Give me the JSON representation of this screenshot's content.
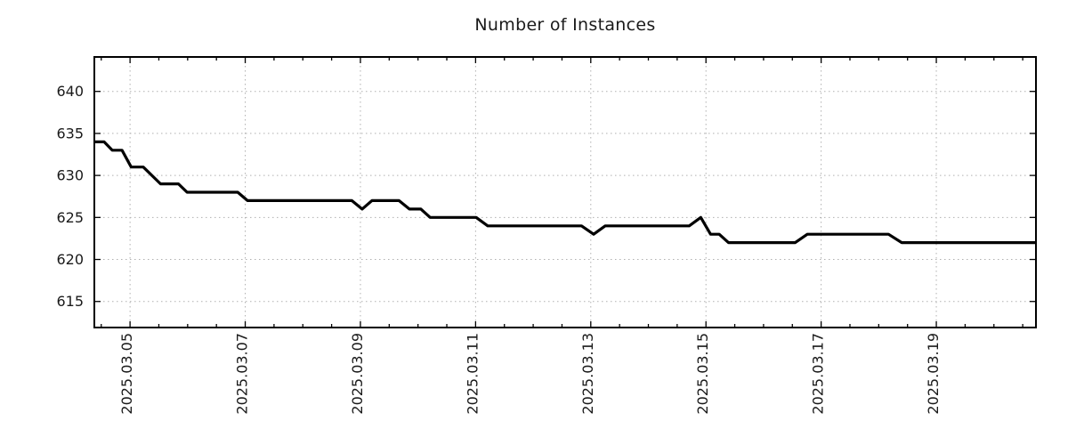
{
  "chart_data": {
    "type": "line",
    "title": "Number of Instances",
    "x_axis": {
      "kind": "date",
      "day_zero": "2025.03.05",
      "major_tick_labels": [
        "2025.03.05",
        "2025.03.07",
        "2025.03.09",
        "2025.03.11",
        "2025.03.13",
        "2025.03.15",
        "2025.03.17",
        "2025.03.19"
      ],
      "major_tick_days": [
        0,
        2,
        4,
        6,
        8,
        10,
        12,
        14
      ],
      "minor_tick_interval_days": 0.5,
      "range_days": [
        -0.62,
        15.73
      ]
    },
    "y_axis": {
      "ticks": [
        615,
        620,
        625,
        630,
        635,
        640
      ],
      "range": [
        611.9,
        644.1
      ]
    },
    "grid": {
      "show": true,
      "style": "dotted",
      "at": "major-ticks"
    },
    "legend": {
      "show": false
    },
    "series": [
      {
        "points_day_value": [
          [
            -0.62,
            634
          ],
          [
            -0.45,
            634
          ],
          [
            -0.31,
            633
          ],
          [
            -0.14,
            633
          ],
          [
            0.02,
            631
          ],
          [
            0.23,
            631
          ],
          [
            0.53,
            629
          ],
          [
            0.84,
            629
          ],
          [
            0.99,
            628
          ],
          [
            1.87,
            628
          ],
          [
            2.04,
            627
          ],
          [
            3.85,
            627
          ],
          [
            4.03,
            626
          ],
          [
            4.2,
            627
          ],
          [
            4.67,
            627
          ],
          [
            4.85,
            626
          ],
          [
            5.05,
            626
          ],
          [
            5.21,
            625
          ],
          [
            6.01,
            625
          ],
          [
            6.21,
            624
          ],
          [
            7.84,
            624
          ],
          [
            8.05,
            623
          ],
          [
            8.25,
            624
          ],
          [
            9.71,
            624
          ],
          [
            9.91,
            625
          ],
          [
            10.08,
            623
          ],
          [
            10.23,
            623
          ],
          [
            10.39,
            622
          ],
          [
            11.55,
            622
          ],
          [
            11.76,
            623
          ],
          [
            13.17,
            623
          ],
          [
            13.4,
            622
          ],
          [
            15.73,
            622
          ]
        ]
      }
    ],
    "colors": {
      "line": "#000000",
      "frame": "#000000",
      "grid": "#b0b0b0",
      "text": "#1a1a1a",
      "background": "#ffffff"
    }
  }
}
